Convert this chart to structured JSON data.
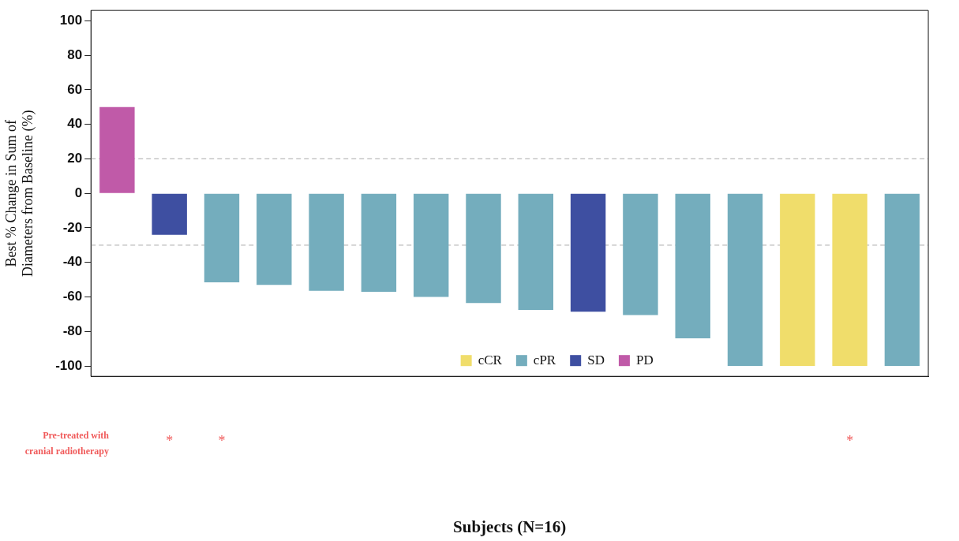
{
  "chart_data": {
    "type": "bar",
    "xlabel": "Subjects (N=16)",
    "ylabel": "Best % Change in Sum of Diameters from Baseline (%)",
    "categories": [
      null,
      "*",
      "*",
      null,
      null,
      null,
      null,
      null,
      null,
      null,
      null,
      null,
      null,
      null,
      "*",
      null
    ],
    "stacked": true,
    "series": [
      {
        "name": "cCR",
        "color": "#f0dd6b",
        "values": [
          null,
          null,
          null,
          null,
          null,
          null,
          null,
          null,
          null,
          null,
          null,
          null,
          null,
          -100,
          -100,
          null
        ]
      },
      {
        "name": "cPR",
        "color": "#74adbd",
        "values": [
          null,
          null,
          -51.5,
          -53,
          -56.5,
          -57,
          -60,
          -63.5,
          -67.5,
          null,
          -70.5,
          -84,
          -100,
          null,
          null,
          -100
        ]
      },
      {
        "name": "SD",
        "color": "#3e4fa1",
        "values": [
          null,
          -24,
          null,
          null,
          null,
          null,
          null,
          null,
          null,
          -68.5,
          null,
          null,
          null,
          null,
          null,
          null
        ]
      },
      {
        "name": "PD",
        "color": "#c05aa8",
        "values": [
          50,
          null,
          null,
          null,
          null,
          null,
          null,
          null,
          null,
          null,
          null,
          null,
          null,
          null,
          null,
          null
        ]
      }
    ],
    "ylim": [
      -106,
      106
    ],
    "yticks": [
      -100,
      -80,
      -60,
      -40,
      -20,
      0,
      20,
      40,
      60,
      80,
      100
    ],
    "ref_lines": [
      {
        "axis": "y",
        "value": 20,
        "color": "#bbbbbb",
        "line_style": "dashed"
      },
      {
        "axis": "y",
        "value": -30,
        "color": "#bbbbbb",
        "line_style": "dashed"
      }
    ],
    "grid": false,
    "legend": "bottom",
    "annotations": [
      "Pre-treated with cranial radiotherapy"
    ]
  }
}
